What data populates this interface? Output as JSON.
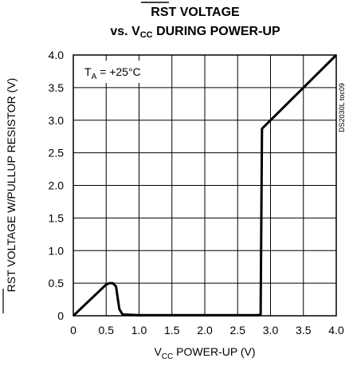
{
  "chart_data": {
    "type": "line",
    "title_line1": "RST VOLTAGE",
    "title_line2_prefix": "vs. V",
    "title_line2_sub": "CC",
    "title_line2_suffix": " DURING POWER-UP",
    "xlabel_prefix": "V",
    "xlabel_sub": "CC",
    "xlabel_suffix": " POWER-UP (V)",
    "ylabel_overline": "RST",
    "ylabel_rest": " VOLTAGE W/PULLUP RESISTOR (V)",
    "annotation_prefix": "T",
    "annotation_sub": "A",
    "annotation_suffix": " = +25°C",
    "figure_code": "DS2030L toc09",
    "xlim": [
      0,
      4.0
    ],
    "ylim": [
      0,
      4.0
    ],
    "x_ticks": [
      "0",
      "0.5",
      "1.0",
      "1.5",
      "2.0",
      "2.5",
      "3.0",
      "3.5",
      "4.0"
    ],
    "y_ticks": [
      "0",
      "0.5",
      "1.0",
      "1.5",
      "2.0",
      "2.5",
      "3.0",
      "3.5",
      "4.0"
    ],
    "grid": true,
    "series": [
      {
        "x": [
          0,
          0.5,
          0.55,
          0.6,
          0.65,
          0.7,
          0.75,
          1.0,
          2.0,
          2.8,
          2.85,
          2.87,
          2.9,
          3.0,
          3.5,
          4.0
        ],
        "y": [
          0,
          0.48,
          0.5,
          0.5,
          0.45,
          0.1,
          0.02,
          0.01,
          0.01,
          0.01,
          0.02,
          2.87,
          2.9,
          3.0,
          3.5,
          4.0
        ]
      }
    ]
  }
}
